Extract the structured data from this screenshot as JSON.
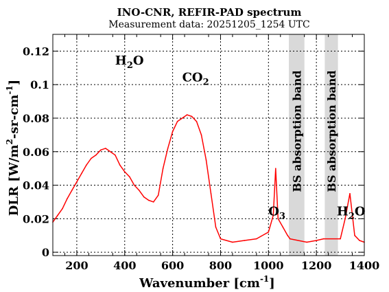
{
  "chart_data": {
    "type": "line",
    "title": "INO-CNR, REFIR-PAD spectrum",
    "subtitle": "Measurement data: 20251205_1254 UTC",
    "xlabel": "Wavenumber [cm",
    "xlabel_sup": "-1",
    "xlabel_end": "]",
    "ylabel": "DLR [W/m",
    "ylabel_sup1": "2",
    "ylabel_mid": "-sr-cm",
    "ylabel_sup2": "-1",
    "ylabel_end": "]",
    "xlim": [
      100,
      1400
    ],
    "ylim": [
      -0.002,
      0.13
    ],
    "x_ticks": [
      200,
      400,
      600,
      800,
      1000,
      1200,
      1400
    ],
    "x_tick_labels": [
      "200",
      "400",
      "600",
      "800",
      "1000",
      "1200",
      "1400"
    ],
    "y_ticks": [
      0,
      0.02,
      0.04,
      0.06,
      0.08,
      0.1,
      0.12
    ],
    "y_tick_labels": [
      "0",
      "0.02",
      "0.04",
      "0.06",
      "0.08",
      "0.1",
      "0.12"
    ],
    "series_color": "#ff0000",
    "band_color": "#d9d9d9",
    "bands": [
      {
        "label": "BS absorption band",
        "x_range": [
          1085,
          1150
        ]
      },
      {
        "label": "BS absorption band",
        "x_range": [
          1235,
          1290
        ]
      }
    ],
    "annotations": [
      {
        "base": "H",
        "sub": "2",
        "tail": "O",
        "x": 360,
        "y": 0.112
      },
      {
        "base": "CO",
        "sub": "2",
        "tail": "",
        "x": 640,
        "y": 0.102
      },
      {
        "base": "O",
        "sub": "3",
        "tail": "",
        "x": 1000,
        "y": 0.022
      },
      {
        "base": "H",
        "sub": "2",
        "tail": "O",
        "x": 1285,
        "y": 0.022
      }
    ],
    "series": [
      {
        "x": [
          100,
          120,
          140,
          160,
          180,
          200,
          220,
          240,
          260,
          280,
          300,
          320,
          340,
          360,
          380,
          400,
          420,
          440,
          460,
          480,
          500,
          520,
          540,
          560,
          580,
          600,
          620,
          640,
          660,
          680,
          700,
          720,
          740,
          760,
          780,
          800,
          850,
          900,
          950,
          1000,
          1020,
          1030,
          1040,
          1060,
          1080,
          1090,
          1160,
          1200,
          1230,
          1300,
          1320,
          1340,
          1360,
          1380,
          1400
        ],
        "y": [
          0.018,
          0.022,
          0.026,
          0.032,
          0.037,
          0.042,
          0.047,
          0.052,
          0.056,
          0.058,
          0.061,
          0.062,
          0.06,
          0.058,
          0.052,
          0.048,
          0.045,
          0.04,
          0.037,
          0.033,
          0.031,
          0.03,
          0.034,
          0.05,
          0.062,
          0.072,
          0.078,
          0.08,
          0.082,
          0.081,
          0.078,
          0.07,
          0.055,
          0.035,
          0.015,
          0.008,
          0.006,
          0.007,
          0.008,
          0.012,
          0.022,
          0.05,
          0.02,
          0.015,
          0.01,
          0.008,
          0.006,
          0.007,
          0.008,
          0.008,
          0.02,
          0.035,
          0.01,
          0.007,
          0.006
        ]
      }
    ]
  }
}
